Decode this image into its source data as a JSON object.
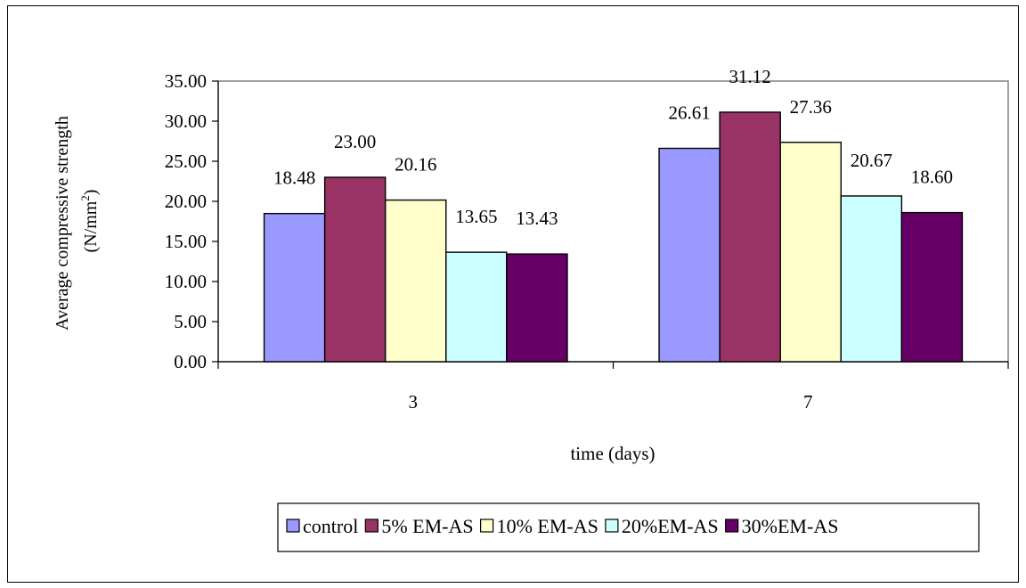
{
  "chart_data": {
    "type": "bar",
    "title": "",
    "xlabel": "time (days)",
    "ylabel_line1": "Average compressive strength",
    "ylabel_line2_prefix": "(N/mm",
    "ylabel_line2_sup": "2",
    "ylabel_line2_suffix": ")",
    "categories": [
      "3",
      "7"
    ],
    "ylim": [
      0,
      35
    ],
    "ytick_step": 5,
    "ytick_labels": [
      "0.00",
      "5.00",
      "10.00",
      "15.00",
      "20.00",
      "25.00",
      "30.00",
      "35.00"
    ],
    "grid": false,
    "legend_position": "bottom",
    "series": [
      {
        "name": "control",
        "color": "#9999ff",
        "values": [
          18.48,
          26.61
        ],
        "labels": [
          "18.48",
          "26.61"
        ]
      },
      {
        "name": "5% EM-AS",
        "color": "#993366",
        "values": [
          23.0,
          31.12
        ],
        "labels": [
          "23.00",
          "31.12"
        ]
      },
      {
        "name": "10% EM-AS",
        "color": "#ffffcc",
        "values": [
          20.16,
          27.36
        ],
        "labels": [
          "20.16",
          "27.36"
        ]
      },
      {
        "name": "20%EM-AS",
        "color": "#ccffff",
        "values": [
          13.65,
          20.67
        ],
        "labels": [
          "13.65",
          "20.67"
        ]
      },
      {
        "name": "30%EM-AS",
        "color": "#660066",
        "values": [
          13.43,
          18.6
        ],
        "labels": [
          "13.43",
          "18.60"
        ]
      }
    ]
  }
}
